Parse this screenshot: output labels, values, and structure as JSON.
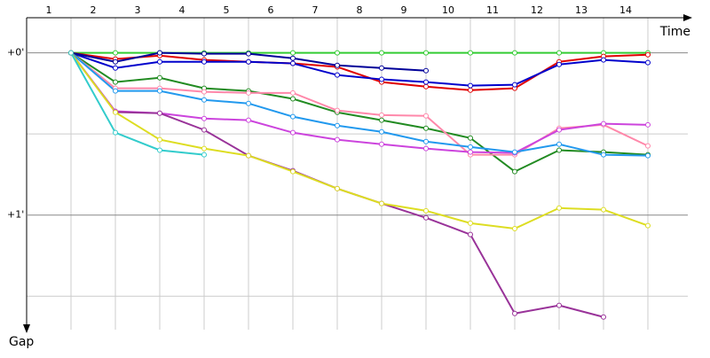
{
  "chart_data": {
    "type": "line",
    "x_label": "Time",
    "y_label": "Gap",
    "categories": [
      "1",
      "2",
      "3",
      "4",
      "5",
      "6",
      "7",
      "8",
      "9",
      "10",
      "11",
      "12",
      "13",
      "14"
    ],
    "ylim": [
      -13,
      105
    ],
    "yticks": [
      {
        "value": 0,
        "label": "+0'"
      },
      {
        "value": 60,
        "label": "+1'"
      }
    ],
    "minor_yticks": [
      30,
      90
    ],
    "y_inverted": true,
    "grid": true,
    "series": [
      {
        "color": "#33cc33",
        "values": [
          0,
          0,
          0,
          0,
          0,
          0,
          0,
          0,
          0,
          0,
          0,
          0,
          0,
          0
        ]
      },
      {
        "color": "#e00000",
        "values": [
          0,
          2.3,
          1,
          2.6,
          3.3,
          3.9,
          5.2,
          10.8,
          12.5,
          13.8,
          13.1,
          3.3,
          1.3,
          0.7
        ]
      },
      {
        "color": "#0000cc",
        "values": [
          0,
          5.6,
          3.3,
          3.3,
          3.3,
          3.9,
          8.2,
          9.8,
          10.8,
          12.1,
          11.8,
          4.3,
          2.6,
          3.6
        ]
      },
      {
        "color": "#000099",
        "values": [
          0,
          3.3,
          0,
          0.3,
          0.3,
          2,
          4.6,
          5.6,
          6.6,
          null,
          null,
          null,
          null,
          null
        ]
      },
      {
        "color": "#228b22",
        "values": [
          0,
          10.8,
          9.2,
          13.1,
          14.1,
          17,
          22,
          24.9,
          27.9,
          31.5,
          43.9,
          36,
          36.7,
          37.7
        ]
      },
      {
        "color": "#ff88aa",
        "values": [
          0,
          13.1,
          13.1,
          14.4,
          14.8,
          14.8,
          21.3,
          23,
          23.3,
          37.7,
          37.7,
          27.9,
          26.6,
          34.4
        ]
      },
      {
        "color": "#cc44dd",
        "values": [
          0,
          21.6,
          22.3,
          24.3,
          24.9,
          29.5,
          32.1,
          33.8,
          35.4,
          36.7,
          37,
          28.5,
          26.2,
          26.6
        ]
      },
      {
        "color": "#2299ee",
        "values": [
          0,
          14.1,
          14.1,
          17.4,
          18.7,
          23.6,
          26.9,
          29.2,
          32.8,
          34.8,
          36.7,
          33.8,
          37.7,
          38
        ]
      },
      {
        "color": "#993399",
        "values": [
          0,
          21.9,
          22.3,
          28.5,
          38,
          43.6,
          50.2,
          55.7,
          61,
          67.2,
          96.4,
          93.4,
          97.7,
          null
        ]
      },
      {
        "color": "#dddd22",
        "values": [
          0,
          22,
          32.1,
          35.4,
          38,
          43.9,
          50.2,
          55.7,
          58.4,
          63,
          65,
          57.4,
          58,
          63.9
        ]
      },
      {
        "color": "#33cccc",
        "values": [
          0,
          29.5,
          36,
          37.7,
          null,
          null,
          null,
          null,
          null,
          null,
          null,
          null,
          null,
          null
        ]
      }
    ]
  }
}
